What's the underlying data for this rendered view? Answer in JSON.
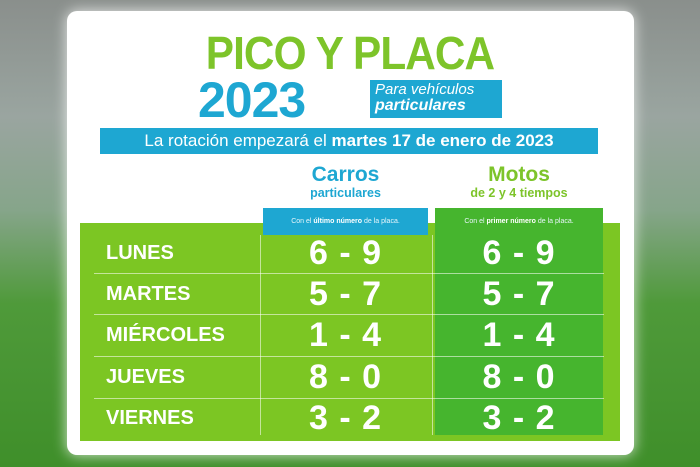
{
  "title": "PICO Y PLACA",
  "year": "2023",
  "subtitle": {
    "line1": "Para vehículos",
    "line2": "particulares"
  },
  "rotation": {
    "prefix": "La rotación empezará el ",
    "date": "martes 17 de enero de 2023"
  },
  "columns": [
    {
      "title": "Carros",
      "subtitle": "particulares",
      "note_pre": "Con el ",
      "note_bold": "último número",
      "note_post": " de la placa.",
      "color": "#1ea7d2"
    },
    {
      "title": "Motos",
      "subtitle": "de 2 y 4 tiempos",
      "note_pre": "Con el ",
      "note_bold": "primer número",
      "note_post": " de la placa.",
      "color": "#7dc42a"
    }
  ],
  "rows": [
    {
      "day": "LUNES",
      "carros": "6 - 9",
      "motos": "6 - 9"
    },
    {
      "day": "MARTES",
      "carros": "5 - 7",
      "motos": "5 - 7"
    },
    {
      "day": "MIÉRCOLES",
      "carros": "1 - 4",
      "motos": "1 - 4"
    },
    {
      "day": "JUEVES",
      "carros": "8 - 0",
      "motos": "8 - 0"
    },
    {
      "day": "VIERNES",
      "carros": "3 - 2",
      "motos": "3 - 2"
    }
  ],
  "colors": {
    "green": "#7cc623",
    "dark_green": "#46b52e",
    "blue": "#1ea7d2"
  }
}
